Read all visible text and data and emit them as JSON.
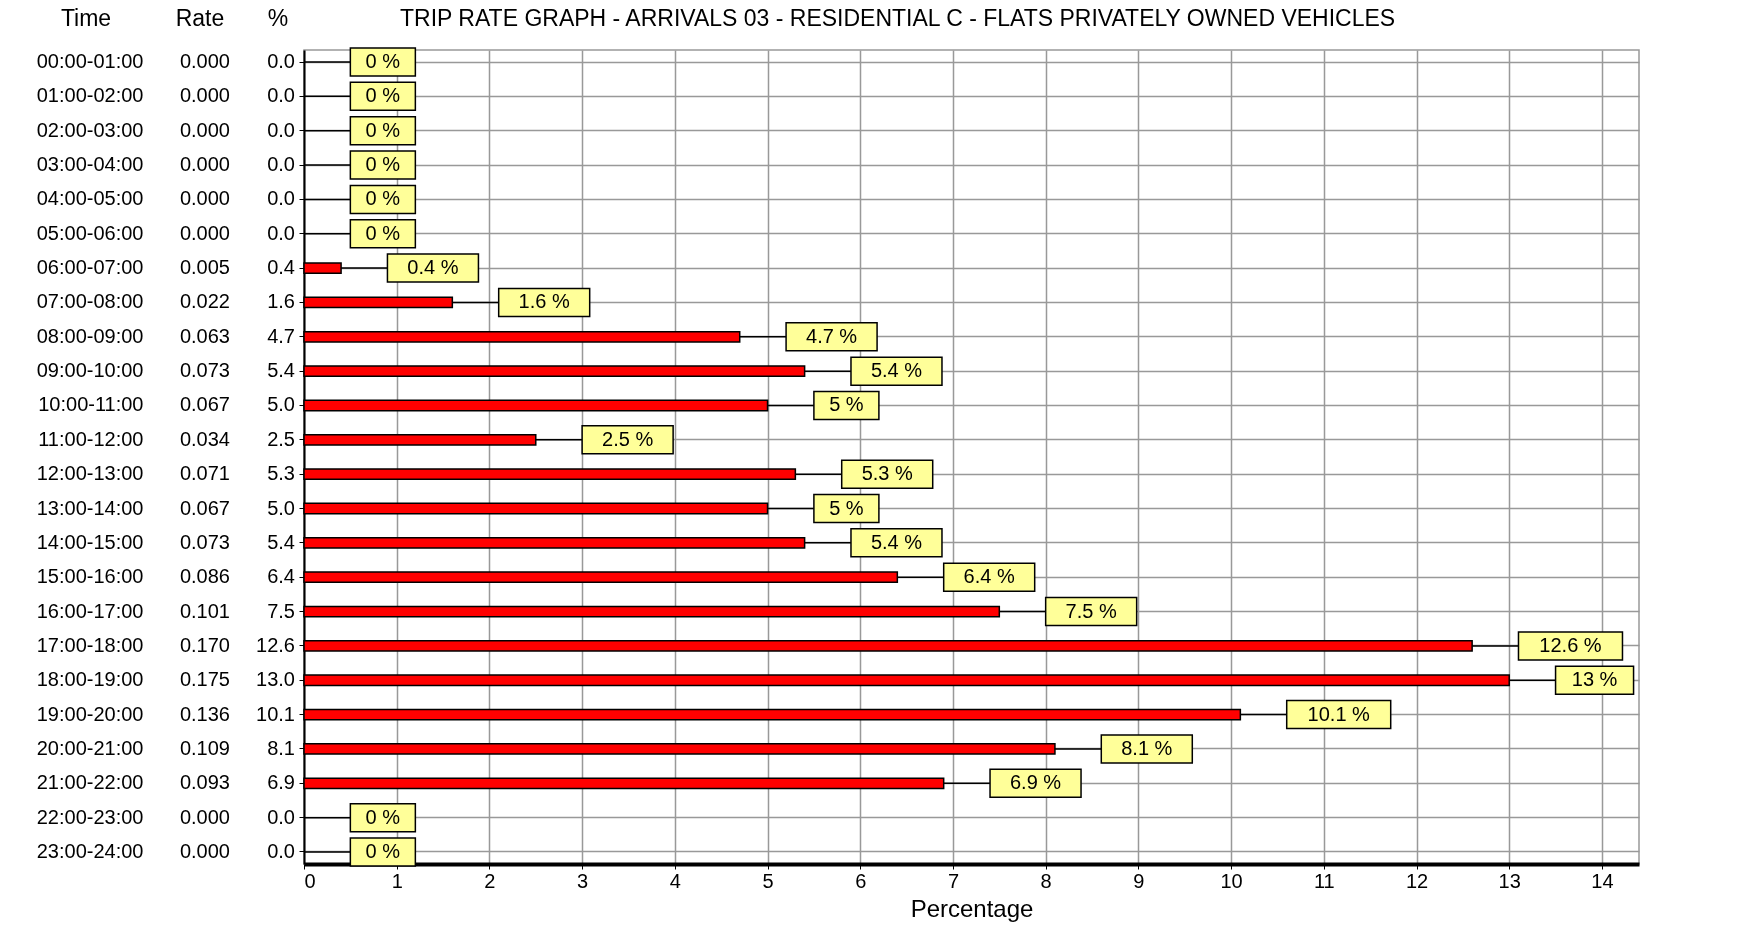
{
  "chart_data": {
    "type": "bar",
    "orientation": "horizontal",
    "title": "TRIP RATE GRAPH - ARRIVALS   03 - RESIDENTIAL  C - FLATS PRIVATELY OWNED     VEHICLES",
    "xlabel": "Percentage",
    "categories": [
      "00:00-01:00",
      "01:00-02:00",
      "02:00-03:00",
      "03:00-04:00",
      "04:00-05:00",
      "05:00-06:00",
      "06:00-07:00",
      "07:00-08:00",
      "08:00-09:00",
      "09:00-10:00",
      "10:00-11:00",
      "11:00-12:00",
      "12:00-13:00",
      "13:00-14:00",
      "14:00-15:00",
      "15:00-16:00",
      "16:00-17:00",
      "17:00-18:00",
      "18:00-19:00",
      "19:00-20:00",
      "20:00-21:00",
      "21:00-22:00",
      "22:00-23:00",
      "23:00-24:00"
    ],
    "values": [
      0,
      0,
      0,
      0,
      0,
      0,
      0.4,
      1.6,
      4.7,
      5.4,
      5.0,
      2.5,
      5.3,
      5.0,
      5.4,
      6.4,
      7.5,
      12.6,
      13.0,
      10.1,
      8.1,
      6.9,
      0,
      0
    ],
    "value_labels": [
      "0 %",
      "0 %",
      "0 %",
      "0 %",
      "0 %",
      "0 %",
      "0.4 %",
      "1.6 %",
      "4.7 %",
      "5.4 %",
      "5 %",
      "2.5 %",
      "5.3 %",
      "5 %",
      "5.4 %",
      "6.4 %",
      "7.5 %",
      "12.6 %",
      "13 %",
      "10.1 %",
      "8.1 %",
      "6.9 %",
      "0 %",
      "0 %"
    ],
    "color": "#ff0000",
    "xlim": [
      0,
      14.4
    ],
    "xticks": [
      0,
      1,
      2,
      3,
      4,
      5,
      6,
      7,
      8,
      9,
      10,
      11,
      12,
      13,
      14
    ],
    "grid": true,
    "annotations": [
      "Time",
      "Rate",
      "%",
      "0.000",
      "0.0",
      "0.000",
      "0.0",
      "0.000",
      "0.0",
      "0.000",
      "0.0",
      "0.000",
      "0.0",
      "0.000",
      "0.0",
      "0.005",
      "0.4",
      "0.022",
      "1.6",
      "0.063",
      "4.7",
      "0.073",
      "5.4",
      "0.067",
      "5.0",
      "0.034",
      "2.5",
      "0.071",
      "5.3",
      "0.067",
      "5.0",
      "0.073",
      "5.4",
      "0.086",
      "6.4",
      "0.101",
      "7.5",
      "0.170",
      "12.6",
      "0.175",
      "13.0",
      "0.136",
      "10.1",
      "0.109",
      "8.1",
      "0.093",
      "6.9",
      "0.000",
      "0.0",
      "0.000",
      "0.0"
    ]
  }
}
